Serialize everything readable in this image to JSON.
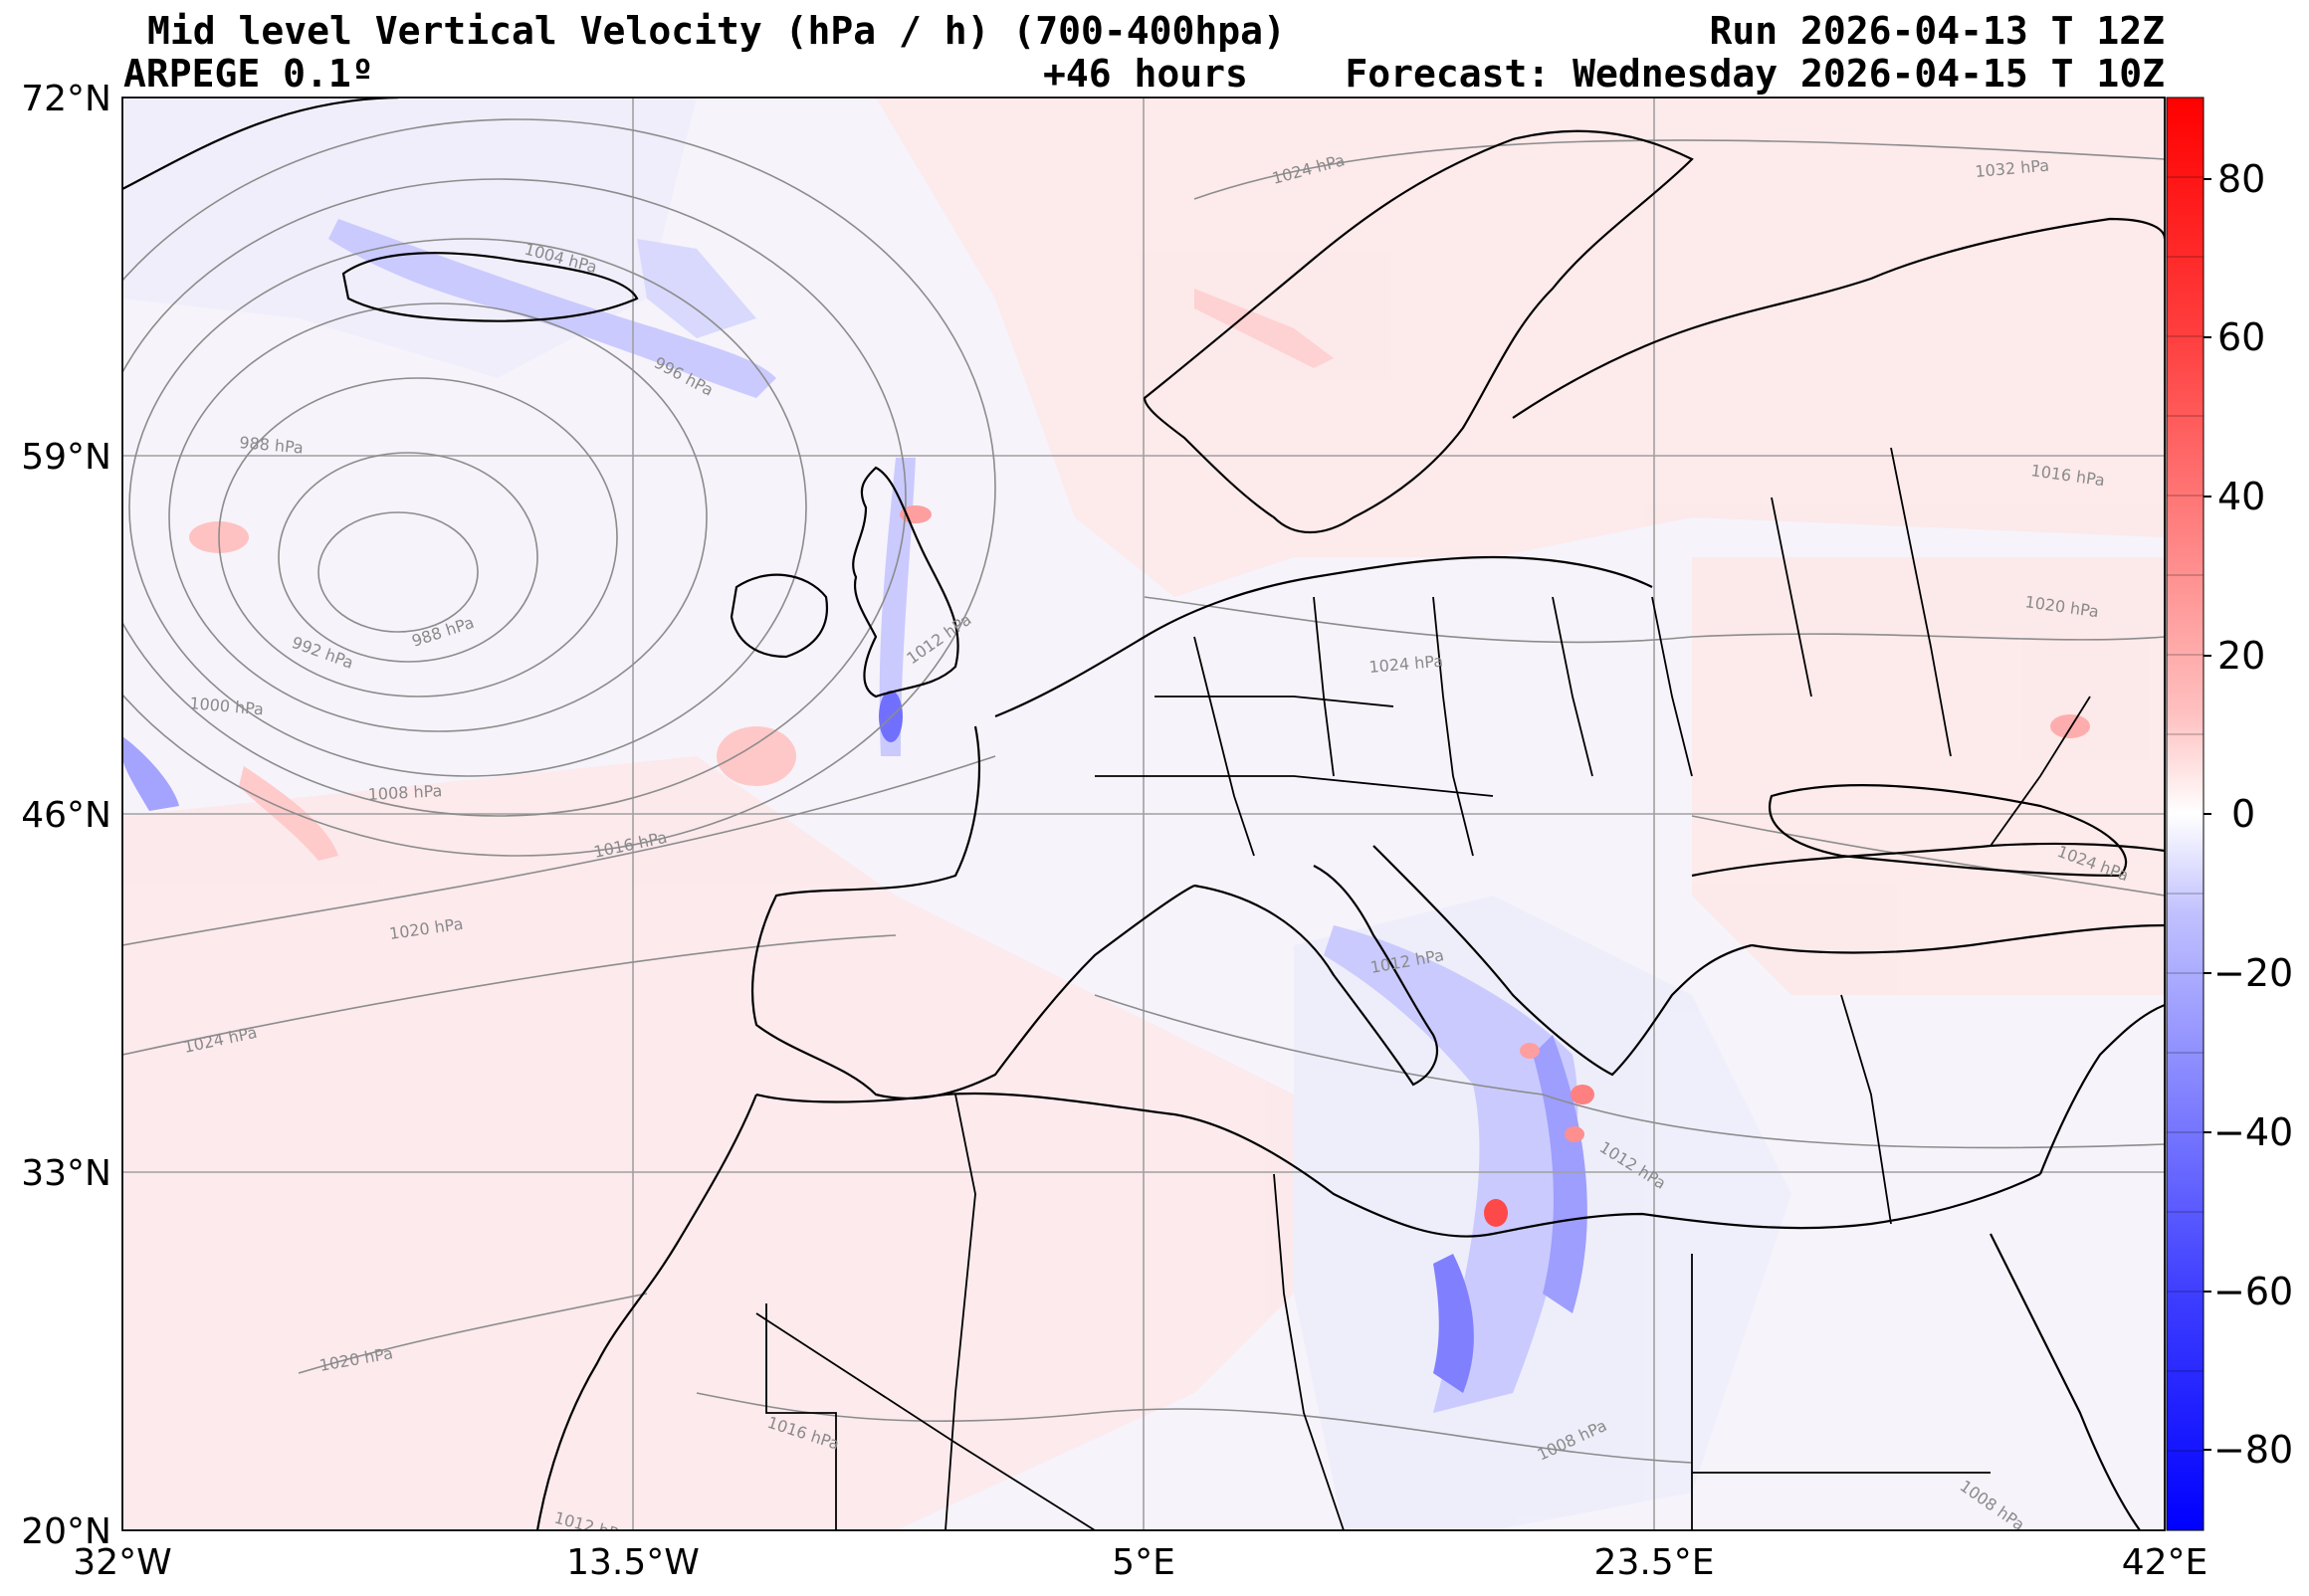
{
  "title": {
    "main": "Mid level Vertical Velocity (hPa / h)  (700-400hpa)",
    "model": "ARPEGE 0.1º",
    "lead": "+46 hours",
    "run": "Run 2026-04-13 T 12Z",
    "forecast": "Forecast: Wednesday 2026-04-15 T 10Z"
  },
  "map": {
    "lon_ticks": [
      "32°W",
      "13.5°W",
      "5°E",
      "23.5°E",
      "42°E"
    ],
    "lat_ticks": [
      "72°N",
      "59°N",
      "46°N",
      "33°N",
      "20°N"
    ]
  },
  "colorbar": {
    "ticks": [
      "80",
      "60",
      "40",
      "20",
      "0",
      "−20",
      "−40",
      "−60",
      "−80"
    ],
    "colors": {
      "pos_strong": "#ff0000",
      "pos_mid": "#ff7070",
      "pos_light": "#ffc8c8",
      "pos_faint": "#ffe9e9",
      "neg_faint": "#eeeeff",
      "neg_light": "#c8c8ff",
      "neg_mid": "#7070ff",
      "neg_strong": "#0000ff"
    }
  },
  "isobar_labels": [
    "1024 hPa",
    "1032 hPa",
    "1004 hPa",
    "996 hPa",
    "988 hPa",
    "988 hPa",
    "992 hPa",
    "1000 hPa",
    "1008 hPa",
    "1016 hPa",
    "1020 hPa",
    "1024 hPa",
    "1012 hPa",
    "1024 hPa",
    "1016 hPa",
    "1020 hPa",
    "1024 hPa",
    "1012 hPa",
    "1012 hPa",
    "1020 hPa",
    "1016 hPa",
    "1008 hPa",
    "1012 hPa",
    "1008 hPa"
  ]
}
